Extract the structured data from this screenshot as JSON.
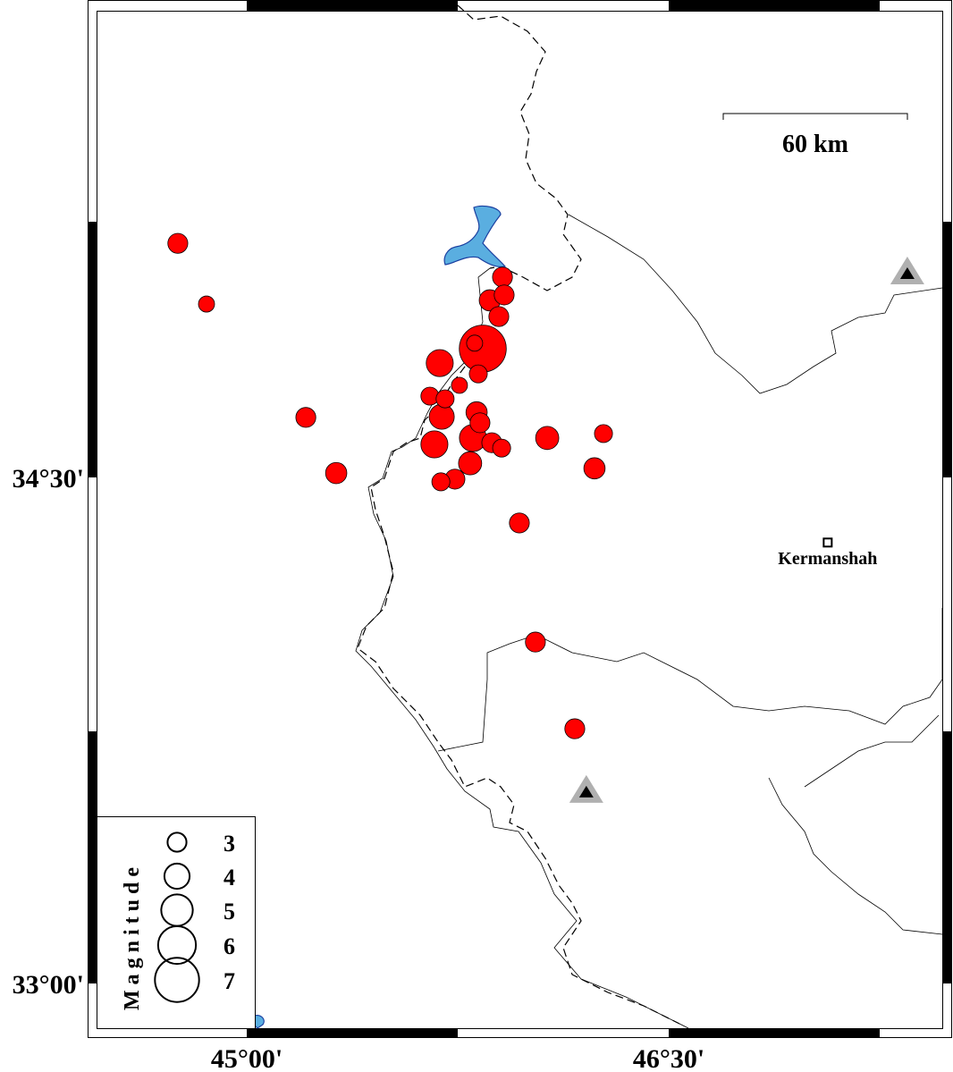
{
  "map": {
    "axis_labels": {
      "x": [
        {
          "lon": 45.0,
          "label": "45°00'"
        },
        {
          "lon": 46.5,
          "label": "46°30'"
        }
      ],
      "y": [
        {
          "lat": 34.5,
          "label": "34°30'"
        },
        {
          "lat": 33.0,
          "label": "33°00'"
        }
      ]
    },
    "scale_bar": {
      "label": "60 km",
      "length_km": 60
    },
    "city": {
      "name": "Kermanshah",
      "lon": 47.065,
      "lat": 34.307
    },
    "stations": [
      {
        "lon": 47.348,
        "lat": 35.107
      },
      {
        "lon": 46.207,
        "lat": 33.57
      }
    ],
    "colors": {
      "event": "#ff0000",
      "station_outer": "#b0b0b0",
      "lake": "#5aaee0",
      "lake_edge": "#1a3fa0"
    },
    "legend": {
      "title": "Magnitude",
      "entries": [
        {
          "label": "3",
          "mag": 3
        },
        {
          "label": "4",
          "mag": 4
        },
        {
          "label": "5",
          "mag": 5
        },
        {
          "label": "6",
          "mag": 6
        },
        {
          "label": "7",
          "mag": 7
        }
      ]
    },
    "events": [
      {
        "lon": 44.755,
        "lat": 35.194,
        "mag": 3.1
      },
      {
        "lon": 44.857,
        "lat": 35.014,
        "mag": 2.5
      },
      {
        "lon": 45.21,
        "lat": 34.678,
        "mag": 3.1
      },
      {
        "lon": 45.318,
        "lat": 34.513,
        "mag": 3.3
      },
      {
        "lon": 45.909,
        "lat": 35.094,
        "mag": 3.1
      },
      {
        "lon": 45.915,
        "lat": 35.041,
        "mag": 3.1
      },
      {
        "lon": 45.864,
        "lat": 35.025,
        "mag": 3.3
      },
      {
        "lon": 45.896,
        "lat": 34.977,
        "mag": 3.1
      },
      {
        "lon": 45.839,
        "lat": 34.882,
        "mag": 7.3
      },
      {
        "lon": 45.81,
        "lat": 34.898,
        "mag": 2.5
      },
      {
        "lon": 45.686,
        "lat": 34.839,
        "mag": 4.2
      },
      {
        "lon": 45.823,
        "lat": 34.807,
        "mag": 2.8
      },
      {
        "lon": 45.756,
        "lat": 34.773,
        "mag": 2.5
      },
      {
        "lon": 45.651,
        "lat": 34.741,
        "mag": 2.8
      },
      {
        "lon": 45.705,
        "lat": 34.733,
        "mag": 2.8
      },
      {
        "lon": 45.693,
        "lat": 34.68,
        "mag": 3.9
      },
      {
        "lon": 45.817,
        "lat": 34.693,
        "mag": 3.3
      },
      {
        "lon": 45.829,
        "lat": 34.662,
        "mag": 3.1
      },
      {
        "lon": 45.667,
        "lat": 34.598,
        "mag": 4.2
      },
      {
        "lon": 45.804,
        "lat": 34.617,
        "mag": 4.2
      },
      {
        "lon": 45.871,
        "lat": 34.603,
        "mag": 3.1
      },
      {
        "lon": 45.906,
        "lat": 34.587,
        "mag": 2.8
      },
      {
        "lon": 45.794,
        "lat": 34.542,
        "mag": 3.6
      },
      {
        "lon": 45.74,
        "lat": 34.495,
        "mag": 3.1
      },
      {
        "lon": 45.69,
        "lat": 34.487,
        "mag": 2.8
      },
      {
        "lon": 46.068,
        "lat": 34.617,
        "mag": 3.6
      },
      {
        "lon": 46.268,
        "lat": 34.63,
        "mag": 2.8
      },
      {
        "lon": 46.236,
        "lat": 34.527,
        "mag": 3.3
      },
      {
        "lon": 45.969,
        "lat": 34.365,
        "mag": 3.1
      },
      {
        "lon": 46.026,
        "lat": 34.012,
        "mag": 3.1
      },
      {
        "lon": 46.166,
        "lat": 33.755,
        "mag": 3.1
      }
    ]
  }
}
